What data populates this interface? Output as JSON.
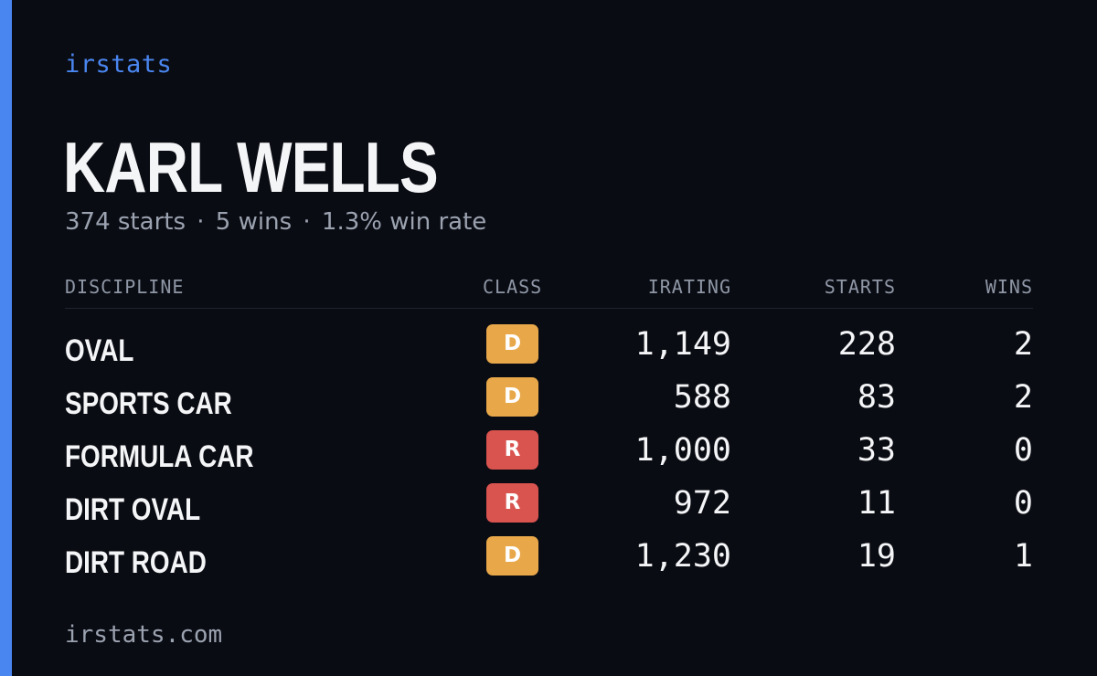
{
  "brand": "irstats",
  "driver": {
    "name": "KARL WELLS",
    "starts_summary": "374 starts",
    "wins_summary": "5 wins",
    "win_rate_summary": "1.3% win rate",
    "separator": "·"
  },
  "table": {
    "headers": {
      "discipline": "DISCIPLINE",
      "class": "CLASS",
      "irating": "IRATING",
      "starts": "STARTS",
      "wins": "WINS"
    },
    "rows": [
      {
        "discipline": "OVAL",
        "class": "D",
        "class_color": "#e8a84a",
        "irating": "1,149",
        "starts": "228",
        "wins": "2"
      },
      {
        "discipline": "SPORTS CAR",
        "class": "D",
        "class_color": "#e8a84a",
        "irating": "588",
        "starts": "83",
        "wins": "2"
      },
      {
        "discipline": "FORMULA CAR",
        "class": "R",
        "class_color": "#d9534f",
        "irating": "1,000",
        "starts": "33",
        "wins": "0"
      },
      {
        "discipline": "DIRT OVAL",
        "class": "R",
        "class_color": "#d9534f",
        "irating": "972",
        "starts": "11",
        "wins": "0"
      },
      {
        "discipline": "DIRT ROAD",
        "class": "D",
        "class_color": "#e8a84a",
        "irating": "1,230",
        "starts": "19",
        "wins": "1"
      }
    ]
  },
  "footer": "irstats.com",
  "colors": {
    "background": "#0a0c13",
    "accent": "#4a86f0",
    "class_d": "#e8a84a",
    "class_r": "#d9534f"
  }
}
